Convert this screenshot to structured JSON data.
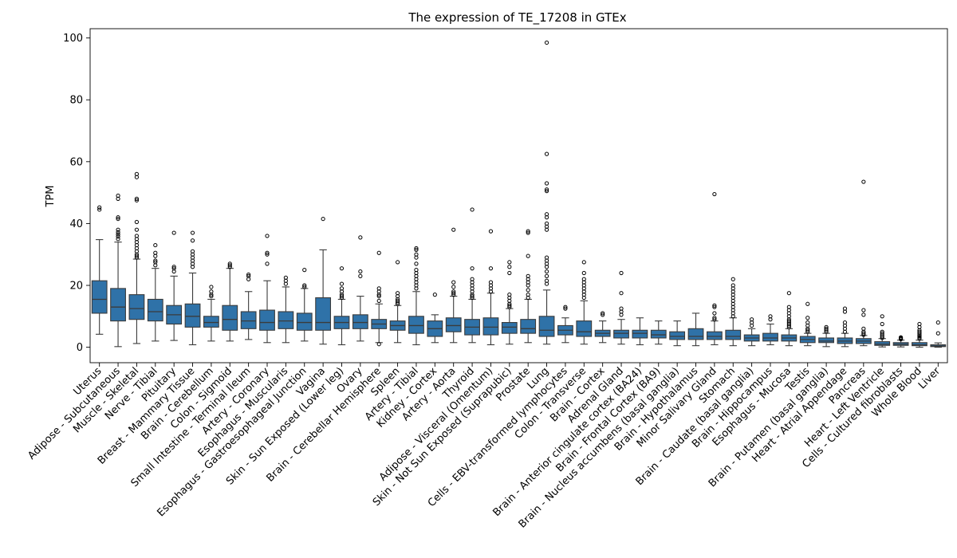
{
  "chart_data": {
    "type": "box",
    "title": "The expression of TE_17208 in GTEx",
    "xlabel": "",
    "ylabel": "TPM",
    "ylim": [
      -5,
      103
    ],
    "yticks": [
      0,
      20,
      40,
      60,
      80,
      100
    ],
    "grid": false,
    "legend": "none",
    "box_color": "#2f72a8",
    "categories": [
      "Uterus",
      "Adipose - Subcutaneous",
      "Muscle - Skeletal",
      "Nerve - Tibial",
      "Pituitary",
      "Breast - Mammary Tissue",
      "Brain - Cerebellum",
      "Colon - Sigmoid",
      "Small Intestine - Terminal Ileum",
      "Artery - Coronary",
      "Esophagus - Muscularis",
      "Esophagus - Gastroesophageal Junction",
      "Vagina",
      "Skin - Sun Exposed (Lower leg)",
      "Ovary",
      "Brain - Cerebellar Hemisphere",
      "Spleen",
      "Artery - Tibial",
      "Kidney - Cortex",
      "Artery - Aorta",
      "Thyroid",
      "Adipose - Visceral (Omentum)",
      "Skin - Not Sun Exposed (Suprapubic)",
      "Prostate",
      "Lung",
      "Cells - EBV-transformed lymphocytes",
      "Colon - Transverse",
      "Brain - Cortex",
      "Adrenal Gland",
      "Brain - Anterior cingulate cortex (BA24)",
      "Brain - Frontal Cortex (BA9)",
      "Brain - Nucleus accumbens (basal ganglia)",
      "Brain - Hypothalamus",
      "Minor Salivary Gland",
      "Stomach",
      "Brain - Caudate (basal ganglia)",
      "Brain - Hippocampus",
      "Esophagus - Mucosa",
      "Testis",
      "Brain - Putamen (basal ganglia)",
      "Heart - Atrial Appendage",
      "Pancreas",
      "Heart - Left Ventricle",
      "Cells - Cultured fibroblasts",
      "Whole Blood",
      "Liver"
    ],
    "boxes": [
      {
        "q1": 11.0,
        "median": 15.5,
        "q3": 21.5,
        "whislo": 4.2,
        "whishi": 34.8,
        "fliers": [
          44.5,
          45.2
        ]
      },
      {
        "q1": 8.5,
        "median": 13.0,
        "q3": 19.0,
        "whislo": 0.2,
        "whishi": 34.0,
        "fliers": [
          35,
          35.8,
          36.5,
          37.2,
          38,
          41.5,
          42,
          48,
          49
        ]
      },
      {
        "q1": 9.0,
        "median": 12.5,
        "q3": 17.0,
        "whislo": 1.2,
        "whishi": 28.5,
        "fliers": [
          29,
          29.5,
          30,
          31,
          32,
          33,
          34,
          35,
          36,
          38,
          40.5,
          47.5,
          48,
          55,
          56
        ]
      },
      {
        "q1": 8.5,
        "median": 11.5,
        "q3": 15.5,
        "whislo": 2.0,
        "whishi": 25.5,
        "fliers": [
          26.5,
          27.5,
          28,
          29.5,
          30.5,
          33
        ]
      },
      {
        "q1": 7.5,
        "median": 10.5,
        "q3": 13.5,
        "whislo": 2.2,
        "whishi": 23.0,
        "fliers": [
          24.5,
          25.5,
          26,
          37
        ]
      },
      {
        "q1": 6.5,
        "median": 10.0,
        "q3": 14.0,
        "whislo": 0.8,
        "whishi": 24.0,
        "fliers": [
          26,
          27,
          28,
          29,
          30,
          31,
          34.5,
          37
        ]
      },
      {
        "q1": 6.5,
        "median": 8.0,
        "q3": 10.0,
        "whislo": 2.0,
        "whishi": 15.5,
        "fliers": [
          16.5,
          17,
          18,
          19.5
        ]
      },
      {
        "q1": 5.5,
        "median": 9.0,
        "q3": 13.5,
        "whislo": 2.0,
        "whishi": 25.5,
        "fliers": [
          26,
          26.5,
          27
        ]
      },
      {
        "q1": 6.0,
        "median": 8.5,
        "q3": 11.5,
        "whislo": 2.5,
        "whishi": 18.0,
        "fliers": [
          22,
          23,
          23.5
        ]
      },
      {
        "q1": 5.5,
        "median": 8.0,
        "q3": 12.0,
        "whislo": 1.5,
        "whishi": 21.5,
        "fliers": [
          27,
          30,
          30.5,
          36
        ]
      },
      {
        "q1": 6.0,
        "median": 8.5,
        "q3": 11.5,
        "whislo": 1.5,
        "whishi": 19.5,
        "fliers": [
          20.5,
          21.5,
          22.5
        ]
      },
      {
        "q1": 5.5,
        "median": 8.0,
        "q3": 11.0,
        "whislo": 2.0,
        "whishi": 19.0,
        "fliers": [
          19.5,
          20,
          25
        ]
      },
      {
        "q1": 5.5,
        "median": 8.0,
        "q3": 16.0,
        "whislo": 1.0,
        "whishi": 31.5,
        "fliers": [
          41.5
        ]
      },
      {
        "q1": 6.0,
        "median": 8.0,
        "q3": 10.0,
        "whislo": 0.8,
        "whishi": 15.5,
        "fliers": [
          16,
          16.5,
          17,
          18,
          19,
          20.5,
          25.5
        ]
      },
      {
        "q1": 6.0,
        "median": 8.0,
        "q3": 10.5,
        "whislo": 2.0,
        "whishi": 16.5,
        "fliers": [
          23,
          24.5,
          35.5
        ]
      },
      {
        "q1": 6.0,
        "median": 7.5,
        "q3": 9.0,
        "whislo": 1.5,
        "whishi": 14.0,
        "fliers": [
          15,
          16.5,
          17,
          18,
          19,
          30.5,
          1.0
        ]
      },
      {
        "q1": 5.5,
        "median": 7.0,
        "q3": 8.5,
        "whislo": 1.5,
        "whishi": 13.5,
        "fliers": [
          14,
          14.5,
          15,
          15.5,
          16.5,
          17.5,
          27.5
        ]
      },
      {
        "q1": 4.5,
        "median": 7.0,
        "q3": 10.0,
        "whislo": 0.8,
        "whishi": 18.0,
        "fliers": [
          19,
          20,
          21,
          22,
          23,
          24,
          25,
          27,
          29,
          30,
          31.5,
          32
        ]
      },
      {
        "q1": 3.5,
        "median": 6.0,
        "q3": 8.5,
        "whislo": 1.5,
        "whishi": 10.5,
        "fliers": [
          17
        ]
      },
      {
        "q1": 5.0,
        "median": 7.0,
        "q3": 9.5,
        "whislo": 1.5,
        "whishi": 16.5,
        "fliers": [
          17,
          17.5,
          18,
          19.5,
          21,
          38
        ]
      },
      {
        "q1": 4.0,
        "median": 6.5,
        "q3": 9.0,
        "whislo": 1.5,
        "whishi": 15.5,
        "fliers": [
          16,
          16.5,
          17,
          18,
          19,
          20,
          21,
          22,
          25.5,
          44.5
        ]
      },
      {
        "q1": 4.0,
        "median": 6.5,
        "q3": 9.5,
        "whislo": 0.8,
        "whishi": 17.5,
        "fliers": [
          18,
          19,
          20,
          21,
          25.5,
          37.5
        ]
      },
      {
        "q1": 4.5,
        "median": 6.5,
        "q3": 8.0,
        "whislo": 1.0,
        "whishi": 12.5,
        "fliers": [
          13,
          13.5,
          14,
          15,
          16,
          17,
          24,
          26,
          27.5
        ]
      },
      {
        "q1": 4.5,
        "median": 6.0,
        "q3": 9.0,
        "whislo": 1.5,
        "whishi": 15.5,
        "fliers": [
          16,
          17,
          18.5,
          20,
          21,
          22,
          23,
          29.5,
          37,
          37.5
        ]
      },
      {
        "q1": 3.5,
        "median": 5.5,
        "q3": 10.0,
        "whislo": 1.0,
        "whishi": 18.5,
        "fliers": [
          20.5,
          21.5,
          23,
          24.5,
          26,
          27,
          28,
          29,
          38,
          39,
          40,
          42,
          43,
          50.5,
          51,
          53,
          62.5,
          98.5
        ]
      },
      {
        "q1": 4.0,
        "median": 5.5,
        "q3": 7.0,
        "whislo": 1.5,
        "whishi": 9.5,
        "fliers": [
          12.5,
          13
        ]
      },
      {
        "q1": 3.5,
        "median": 5.0,
        "q3": 8.5,
        "whislo": 1.0,
        "whishi": 15.0,
        "fliers": [
          16,
          17,
          18,
          19,
          20,
          21,
          22,
          24,
          27.5
        ]
      },
      {
        "q1": 3.5,
        "median": 4.5,
        "q3": 5.5,
        "whislo": 1.5,
        "whishi": 8.5,
        "fliers": [
          10.5,
          11
        ]
      },
      {
        "q1": 3.0,
        "median": 4.5,
        "q3": 5.5,
        "whislo": 1.0,
        "whishi": 9.0,
        "fliers": [
          10.5,
          11.5,
          12.5,
          17.5,
          24
        ]
      },
      {
        "q1": 3.0,
        "median": 4.5,
        "q3": 5.5,
        "whislo": 0.8,
        "whishi": 9.5,
        "fliers": []
      },
      {
        "q1": 3.0,
        "median": 4.0,
        "q3": 5.5,
        "whislo": 1.0,
        "whishi": 8.5,
        "fliers": []
      },
      {
        "q1": 2.5,
        "median": 3.5,
        "q3": 5.0,
        "whislo": 0.5,
        "whishi": 8.5,
        "fliers": []
      },
      {
        "q1": 2.5,
        "median": 3.5,
        "q3": 6.0,
        "whislo": 0.5,
        "whishi": 11.0,
        "fliers": []
      },
      {
        "q1": 2.5,
        "median": 3.5,
        "q3": 5.0,
        "whislo": 0.8,
        "whishi": 8.5,
        "fliers": [
          9,
          9.5,
          11,
          13,
          13.5,
          49.5
        ]
      },
      {
        "q1": 2.5,
        "median": 3.5,
        "q3": 5.5,
        "whislo": 0.5,
        "whishi": 9.5,
        "fliers": [
          10,
          11,
          12,
          13,
          14,
          15,
          16,
          17,
          18,
          19,
          20,
          22
        ]
      },
      {
        "q1": 2.0,
        "median": 3.0,
        "q3": 4.0,
        "whislo": 0.5,
        "whishi": 6.0,
        "fliers": [
          7,
          8,
          9
        ]
      },
      {
        "q1": 2.0,
        "median": 3.0,
        "q3": 4.5,
        "whislo": 0.8,
        "whishi": 7.5,
        "fliers": [
          9,
          10
        ]
      },
      {
        "q1": 2.0,
        "median": 3.0,
        "q3": 4.0,
        "whislo": 0.5,
        "whishi": 6.0,
        "fliers": [
          6.5,
          7,
          7.5,
          8,
          8.5,
          9,
          10,
          11,
          12,
          13,
          17.5
        ]
      },
      {
        "q1": 1.5,
        "median": 2.5,
        "q3": 3.5,
        "whislo": 0.5,
        "whishi": 4.5,
        "fliers": [
          5,
          5.5,
          6,
          7,
          8,
          9.5,
          14
        ]
      },
      {
        "q1": 1.5,
        "median": 2.0,
        "q3": 3.0,
        "whislo": 0.2,
        "whishi": 4.5,
        "fliers": [
          5,
          5.5,
          6,
          6.5
        ]
      },
      {
        "q1": 1.2,
        "median": 2.0,
        "q3": 3.0,
        "whislo": 0.2,
        "whishi": 4.5,
        "fliers": [
          5,
          6,
          7,
          8,
          11.5,
          12.5
        ]
      },
      {
        "q1": 1.2,
        "median": 2.0,
        "q3": 2.8,
        "whislo": 0.5,
        "whishi": 3.8,
        "fliers": [
          4,
          4.5,
          5,
          6,
          10.5,
          12,
          53.5
        ]
      },
      {
        "q1": 0.6,
        "median": 1.0,
        "q3": 1.8,
        "whislo": 0.1,
        "whishi": 2.8,
        "fliers": [
          3,
          3.5,
          4,
          4.5,
          5,
          7.5,
          10
        ]
      },
      {
        "q1": 0.6,
        "median": 1.0,
        "q3": 1.5,
        "whislo": 0.1,
        "whishi": 2.3,
        "fliers": [
          2.6,
          2.8,
          3,
          3.2
        ]
      },
      {
        "q1": 0.5,
        "median": 0.8,
        "q3": 1.5,
        "whislo": 0.0,
        "whishi": 2.3,
        "fliers": [
          2.8,
          3.2,
          3.6,
          4,
          4.5,
          5,
          5.5,
          6.5,
          7.5
        ]
      },
      {
        "q1": 0.2,
        "median": 0.4,
        "q3": 0.8,
        "whislo": 0.0,
        "whishi": 1.4,
        "fliers": [
          4.5,
          8
        ]
      }
    ]
  }
}
